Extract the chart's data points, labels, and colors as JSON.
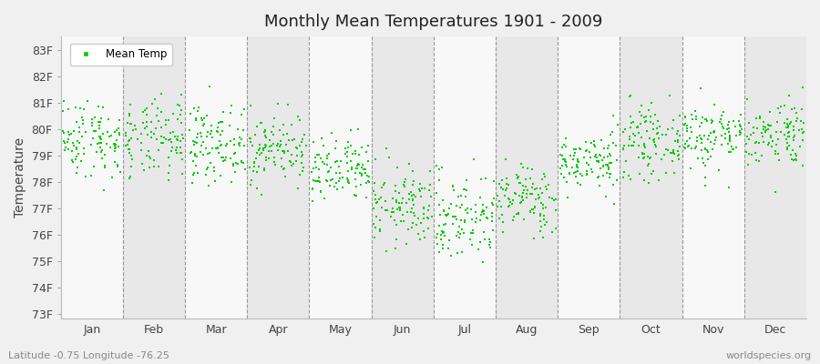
{
  "title": "Monthly Mean Temperatures 1901 - 2009",
  "ylabel": "Temperature",
  "xlabel_months": [
    "Jan",
    "Feb",
    "Mar",
    "Apr",
    "May",
    "Jun",
    "Jul",
    "Aug",
    "Sep",
    "Oct",
    "Nov",
    "Dec"
  ],
  "ytick_labels": [
    "73F",
    "74F",
    "75F",
    "76F",
    "77F",
    "78F",
    "79F",
    "80F",
    "81F",
    "82F",
    "83F"
  ],
  "ytick_values": [
    73,
    74,
    75,
    76,
    77,
    78,
    79,
    80,
    81,
    82,
    83
  ],
  "ylim": [
    72.8,
    83.5
  ],
  "marker_color": "#00cc00",
  "marker": "s",
  "marker_size": 2,
  "legend_label": "Mean Temp",
  "subtitle_left": "Latitude -0.75 Longitude -76.25",
  "subtitle_right": "worldspecies.org",
  "background_color": "#f0f0f0",
  "band_colors": [
    "#f8f8f8",
    "#e8e8e8"
  ],
  "monthly_means": [
    79.65,
    79.55,
    79.45,
    79.25,
    78.35,
    77.05,
    76.65,
    77.35,
    78.75,
    79.5,
    79.75,
    79.85
  ],
  "monthly_stds": [
    0.75,
    0.75,
    0.7,
    0.65,
    0.65,
    0.75,
    0.85,
    0.65,
    0.55,
    0.65,
    0.65,
    0.65
  ],
  "num_years": 109
}
